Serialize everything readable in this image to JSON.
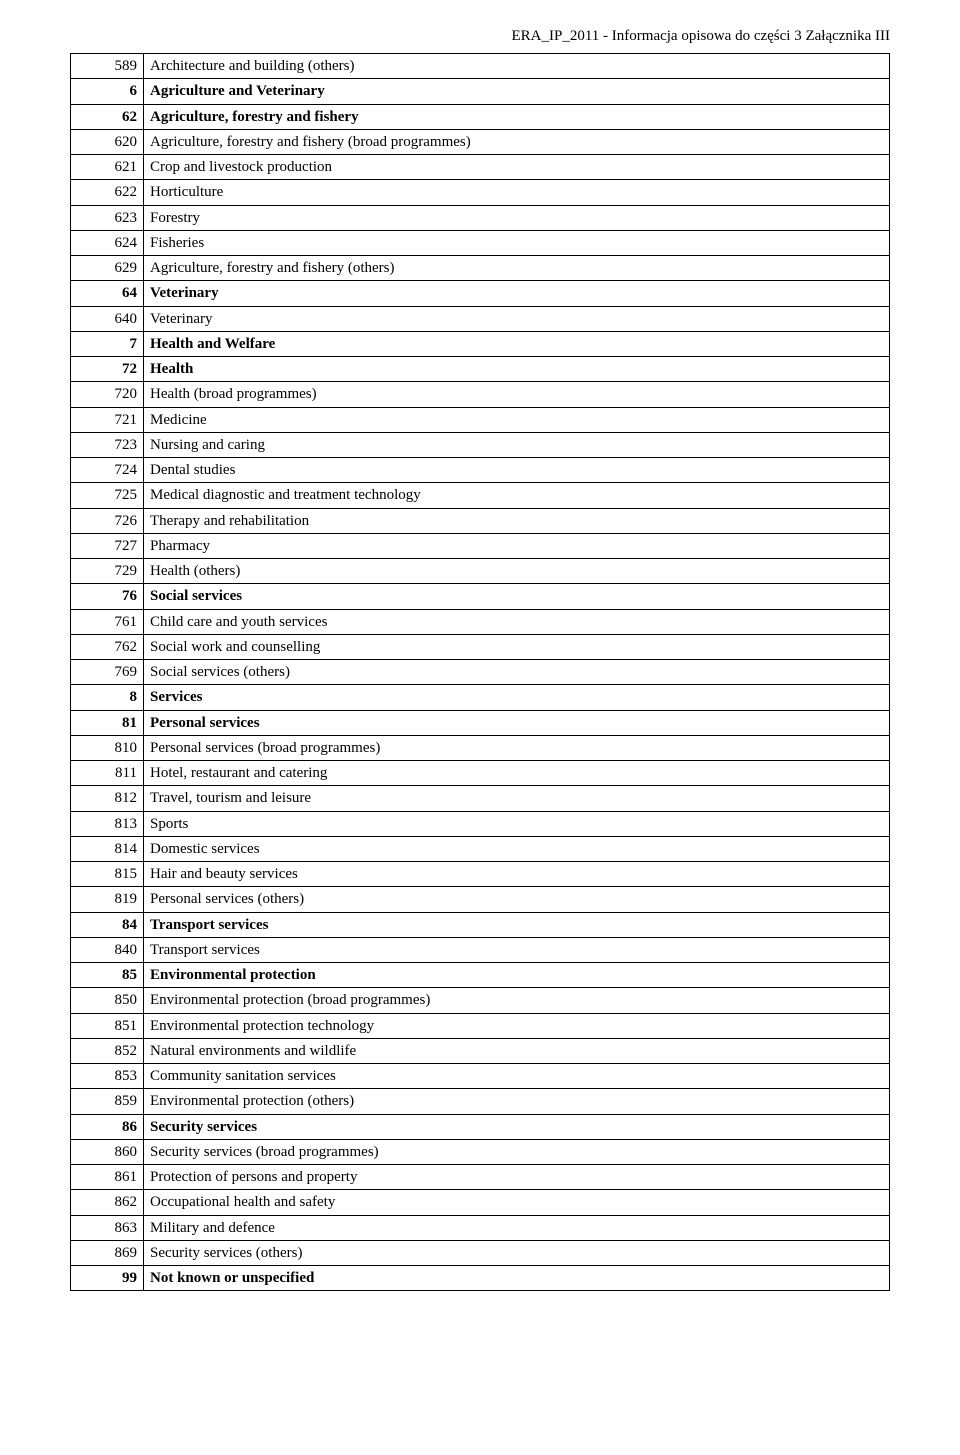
{
  "header": "ERA_IP_2011 - Informacja opisowa do części 3 Załącznika III",
  "table": {
    "col_widths": {
      "code": 60
    },
    "text_color": "#000000",
    "border_color": "#000000",
    "background_color": "#ffffff",
    "font_size": 15,
    "rows": [
      {
        "code": "589",
        "desc": "Architecture and building (others)",
        "bold": false
      },
      {
        "code": "6",
        "desc": "Agriculture and Veterinary",
        "bold": true
      },
      {
        "code": "62",
        "desc": "Agriculture, forestry and fishery",
        "bold": true
      },
      {
        "code": "620",
        "desc": "Agriculture, forestry and fishery (broad programmes)",
        "bold": false
      },
      {
        "code": "621",
        "desc": "Crop and livestock production",
        "bold": false
      },
      {
        "code": "622",
        "desc": "Horticulture",
        "bold": false
      },
      {
        "code": "623",
        "desc": "Forestry",
        "bold": false
      },
      {
        "code": "624",
        "desc": "Fisheries",
        "bold": false
      },
      {
        "code": "629",
        "desc": "Agriculture, forestry and fishery (others)",
        "bold": false
      },
      {
        "code": "64",
        "desc": "Veterinary",
        "bold": true
      },
      {
        "code": "640",
        "desc": "Veterinary",
        "bold": false
      },
      {
        "code": "7",
        "desc": "Health and Welfare",
        "bold": true
      },
      {
        "code": "72",
        "desc": "Health",
        "bold": true
      },
      {
        "code": "720",
        "desc": "Health (broad programmes)",
        "bold": false
      },
      {
        "code": "721",
        "desc": "Medicine",
        "bold": false
      },
      {
        "code": "723",
        "desc": "Nursing and caring",
        "bold": false
      },
      {
        "code": "724",
        "desc": "Dental studies",
        "bold": false
      },
      {
        "code": "725",
        "desc": "Medical diagnostic and treatment technology",
        "bold": false
      },
      {
        "code": "726",
        "desc": "Therapy and rehabilitation",
        "bold": false
      },
      {
        "code": "727",
        "desc": "Pharmacy",
        "bold": false
      },
      {
        "code": "729",
        "desc": "Health (others)",
        "bold": false
      },
      {
        "code": "76",
        "desc": "Social services",
        "bold": true
      },
      {
        "code": "761",
        "desc": "Child care and youth services",
        "bold": false
      },
      {
        "code": "762",
        "desc": "Social work and counselling",
        "bold": false
      },
      {
        "code": "769",
        "desc": "Social services (others)",
        "bold": false
      },
      {
        "code": "8",
        "desc": "Services",
        "bold": true
      },
      {
        "code": "81",
        "desc": "Personal services",
        "bold": true
      },
      {
        "code": "810",
        "desc": "Personal services (broad programmes)",
        "bold": false
      },
      {
        "code": "811",
        "desc": "Hotel, restaurant and catering",
        "bold": false
      },
      {
        "code": "812",
        "desc": "Travel, tourism and leisure",
        "bold": false
      },
      {
        "code": "813",
        "desc": "Sports",
        "bold": false
      },
      {
        "code": "814",
        "desc": "Domestic services",
        "bold": false
      },
      {
        "code": "815",
        "desc": "Hair and beauty services",
        "bold": false
      },
      {
        "code": "819",
        "desc": "Personal services (others)",
        "bold": false
      },
      {
        "code": "84",
        "desc": "Transport services",
        "bold": true
      },
      {
        "code": "840",
        "desc": "Transport services",
        "bold": false
      },
      {
        "code": "85",
        "desc": "Environmental protection",
        "bold": true
      },
      {
        "code": "850",
        "desc": "Environmental protection (broad programmes)",
        "bold": false
      },
      {
        "code": "851",
        "desc": "Environmental protection technology",
        "bold": false
      },
      {
        "code": "852",
        "desc": "Natural environments and wildlife",
        "bold": false
      },
      {
        "code": "853",
        "desc": "Community sanitation services",
        "bold": false
      },
      {
        "code": "859",
        "desc": "Environmental protection (others)",
        "bold": false
      },
      {
        "code": "86",
        "desc": "Security services",
        "bold": true
      },
      {
        "code": "860",
        "desc": "Security services (broad programmes)",
        "bold": false
      },
      {
        "code": "861",
        "desc": "Protection of persons and property",
        "bold": false
      },
      {
        "code": "862",
        "desc": "Occupational health and safety",
        "bold": false
      },
      {
        "code": "863",
        "desc": "Military and defence",
        "bold": false
      },
      {
        "code": "869",
        "desc": "Security services (others)",
        "bold": false
      },
      {
        "code": "99",
        "desc": "Not known or unspecified",
        "bold": true
      }
    ]
  }
}
